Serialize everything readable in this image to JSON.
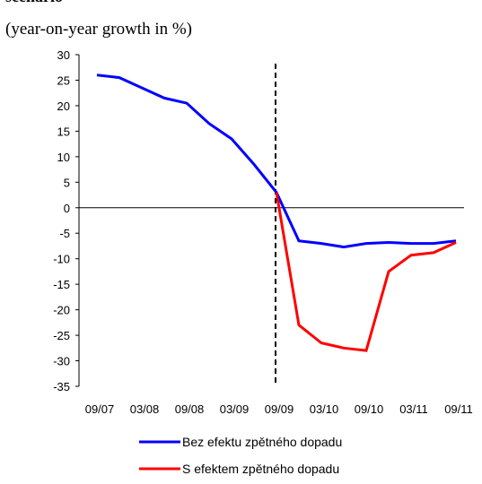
{
  "chart_data": {
    "type": "line",
    "title": "scenario",
    "subtitle": "(year-on-year growth in %)",
    "categories": [
      "09/07",
      null,
      "03/08",
      null,
      "09/08",
      null,
      "03/09",
      null,
      "09/09",
      null,
      "03/10",
      null,
      "09/10",
      null,
      "03/11",
      null,
      "09/11"
    ],
    "series": [
      {
        "name": "Bez efektu zpětného dopadu",
        "color": "#0000ff",
        "values": [
          26,
          25.5,
          23.5,
          21.5,
          20.5,
          16.5,
          13.5,
          8.5,
          3,
          -6.5,
          -7,
          -7.7,
          -7,
          -6.8,
          -7,
          -7,
          -6.5
        ]
      },
      {
        "name": "S efektem zpětného dopadu",
        "color": "#ff0000",
        "values": [
          null,
          null,
          null,
          null,
          null,
          null,
          null,
          null,
          3,
          -23,
          -26.5,
          -27.5,
          -28,
          -12.5,
          -9.3,
          -8.8,
          -6.8
        ]
      }
    ],
    "ylim": [
      -35,
      30
    ],
    "yticks": [
      -35,
      -30,
      -25,
      -20,
      -15,
      -10,
      -5,
      0,
      5,
      10,
      15,
      20,
      25,
      30
    ],
    "vline": "09/09"
  }
}
